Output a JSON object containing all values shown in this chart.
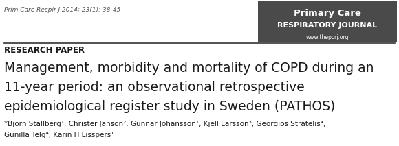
{
  "journal_ref_italic": "Prim Care Respir J ",
  "journal_ref_bold": "2014; 23",
  "journal_ref_rest": "(1): 38-45",
  "journal_ref_full": "Prim Care Respir J 2014; 23(1): 38-45",
  "section_label": "RESEARCH PAPER",
  "title_line1": "Management, morbidity and mortality of COPD during an",
  "title_line2": "11-year period: an observational retrospective",
  "title_line3": "epidemiological register study in Sweden (PATHOS)",
  "authors_line1": "*Björn Ställberg¹, Christer Janson², Gunnar Johansson¹, Kjell Larsson³, Georgios Stratelis⁴,",
  "authors_line2": "Gunilla Telg⁴, Karin H Lisspers¹",
  "logo_line1": "Primary Care",
  "logo_line2": "RESPIRATORY JOURNAL",
  "logo_line3": "www.thepcrj.org",
  "logo_bg_color": "#4a4a4a",
  "logo_text_color": "#ffffff",
  "bg_color": "#ffffff",
  "text_color": "#1a1a1a",
  "journal_ref_color": "#555555",
  "divider_color": "#333333"
}
